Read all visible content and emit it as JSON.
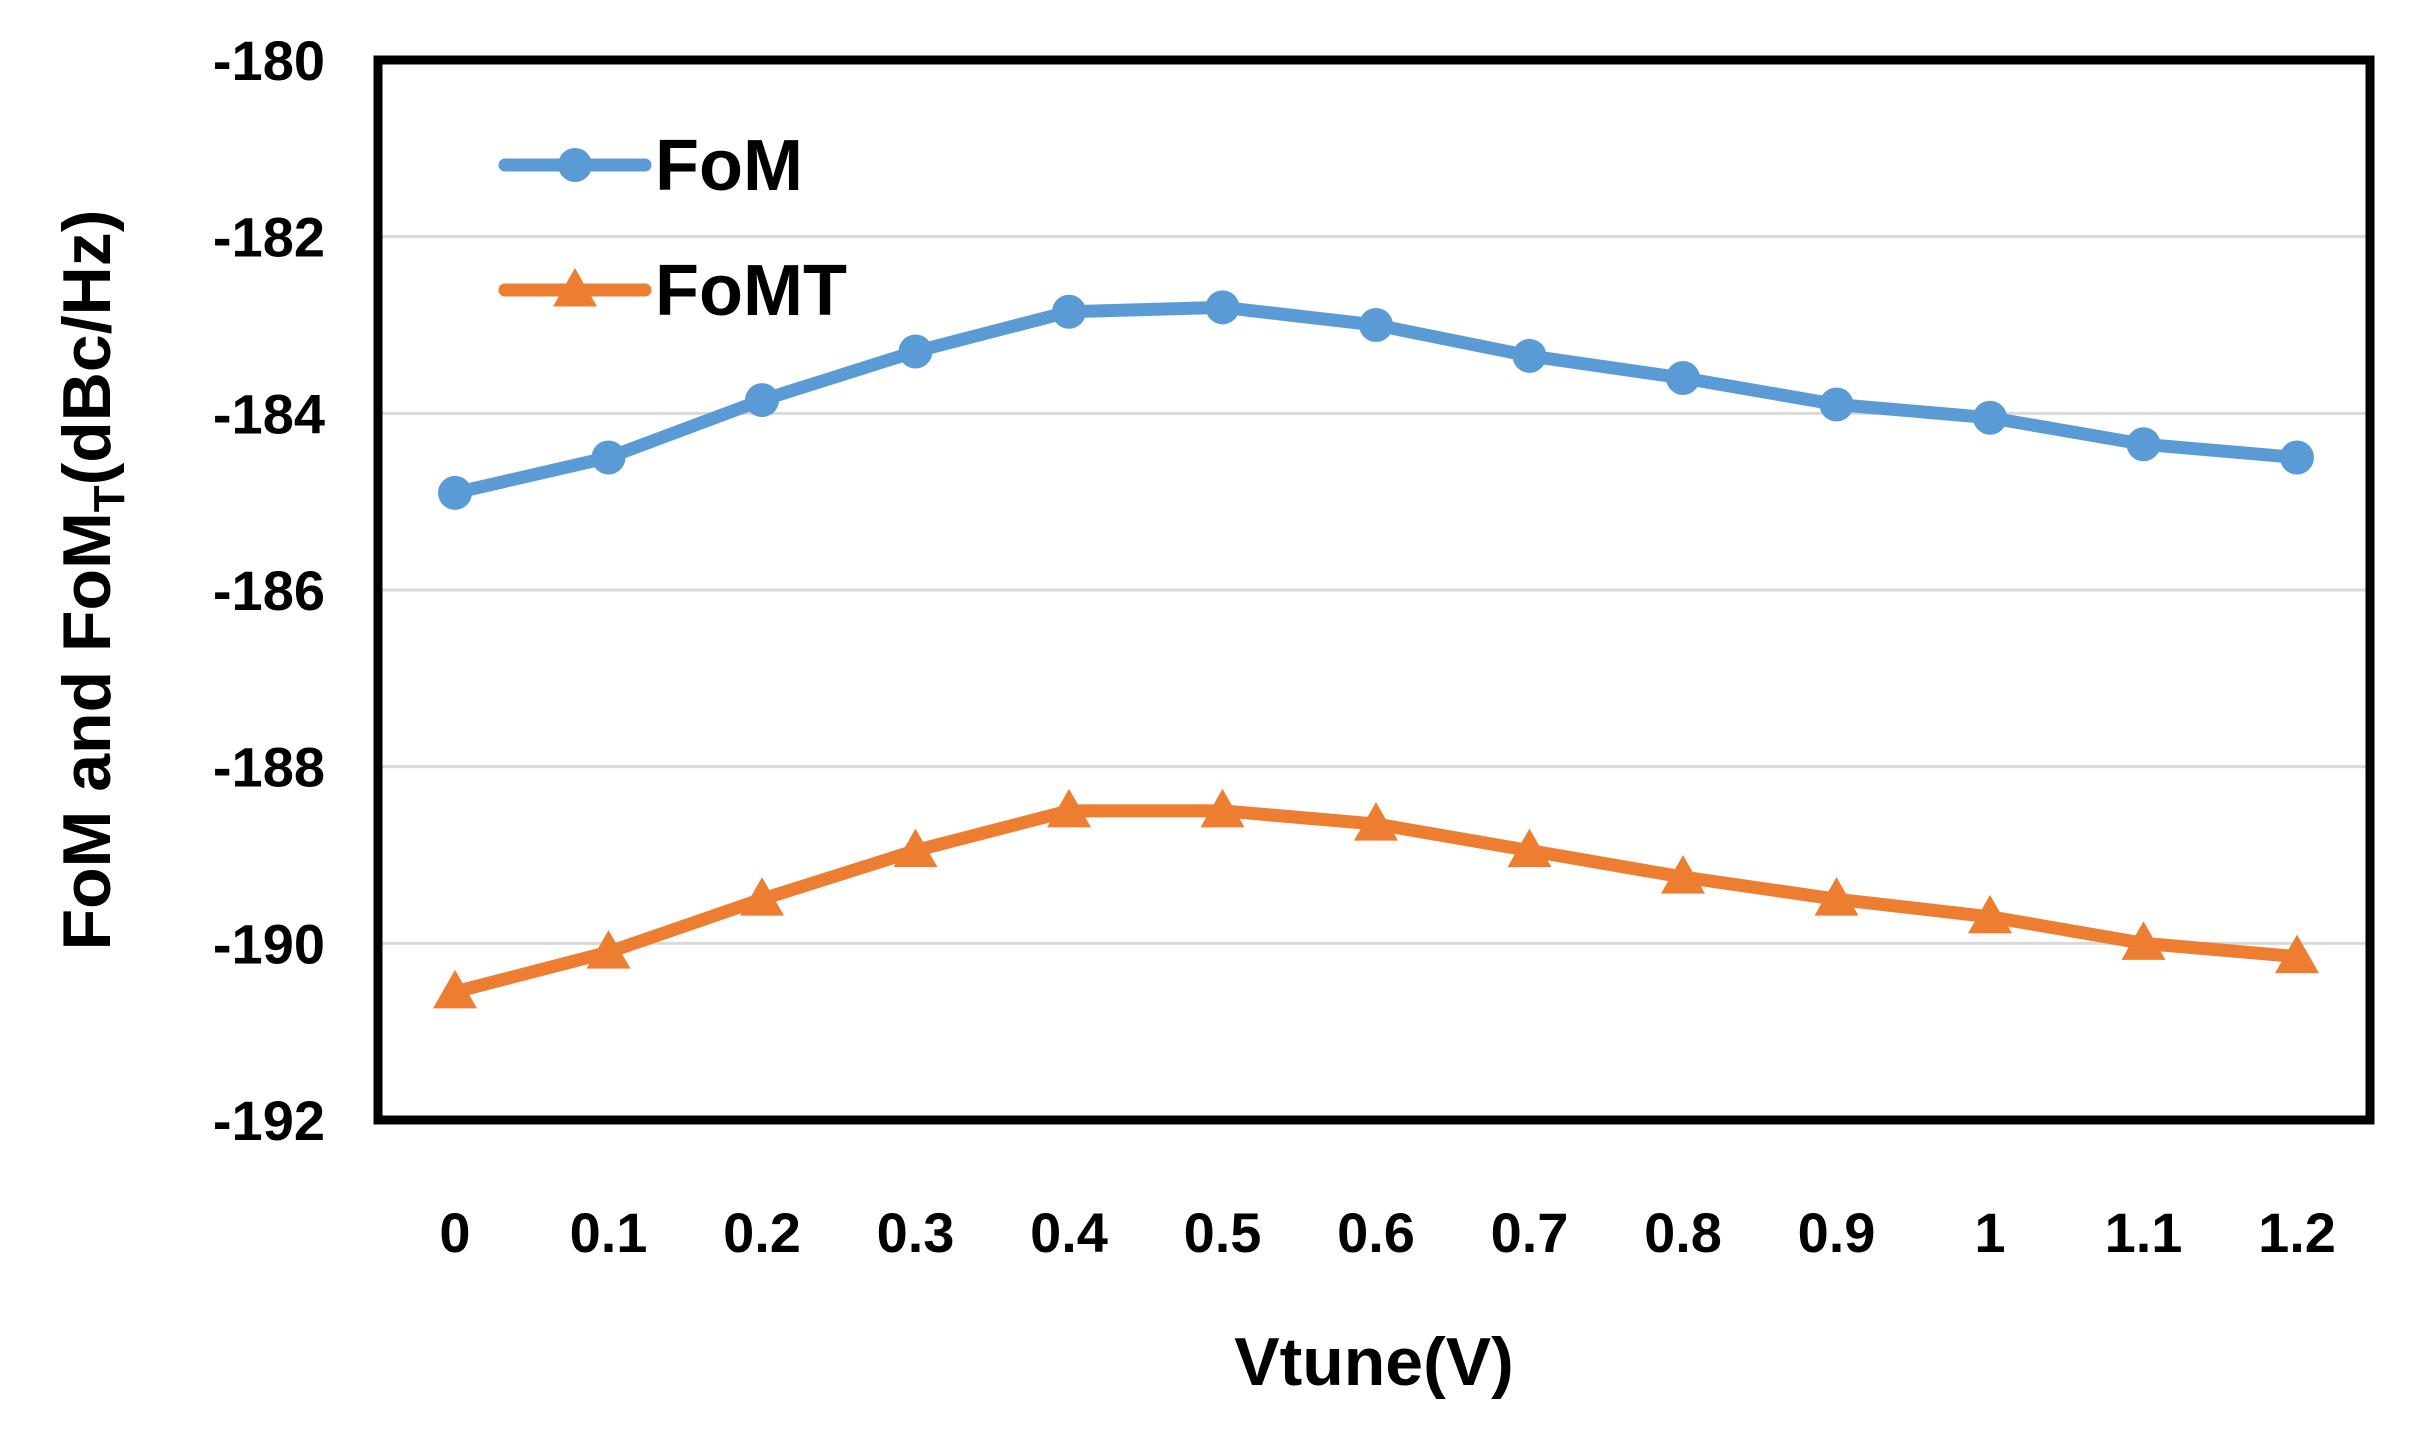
{
  "chart_data": {
    "type": "line",
    "title": "",
    "xlabel": "Vtune(V)",
    "ylabel": "FoM and FoM",
    "ylabel_subscript": "T",
    "ylabel_suffix": "(dBc/Hz)",
    "categories": [
      "0",
      "0.1",
      "0.2",
      "0.3",
      "0.4",
      "0.5",
      "0.6",
      "0.7",
      "0.8",
      "0.9",
      "1",
      "1.1",
      "1.2"
    ],
    "ylim": [
      -192,
      -180
    ],
    "yticks": [
      -180,
      -182,
      -184,
      -186,
      -188,
      -190,
      -192
    ],
    "ytick_labels": [
      "-180",
      "-182",
      "-184",
      "-186",
      "-188",
      "-190",
      "-192"
    ],
    "grid": true,
    "legend_position": "top-left",
    "series": [
      {
        "name": "FoM",
        "color": "#5B9BD5",
        "marker": "circle",
        "values": [
          -184.9,
          -184.5,
          -183.85,
          -183.3,
          -182.85,
          -182.8,
          -183.0,
          -183.35,
          -183.6,
          -183.9,
          -184.05,
          -184.35,
          -184.5
        ]
      },
      {
        "name": "FoMT",
        "color": "#ED7D31",
        "marker": "triangle",
        "values": [
          -190.55,
          -190.1,
          -189.5,
          -188.95,
          -188.5,
          -188.5,
          -188.65,
          -188.95,
          -189.25,
          -189.5,
          -189.7,
          -190.0,
          -190.15
        ]
      }
    ]
  }
}
